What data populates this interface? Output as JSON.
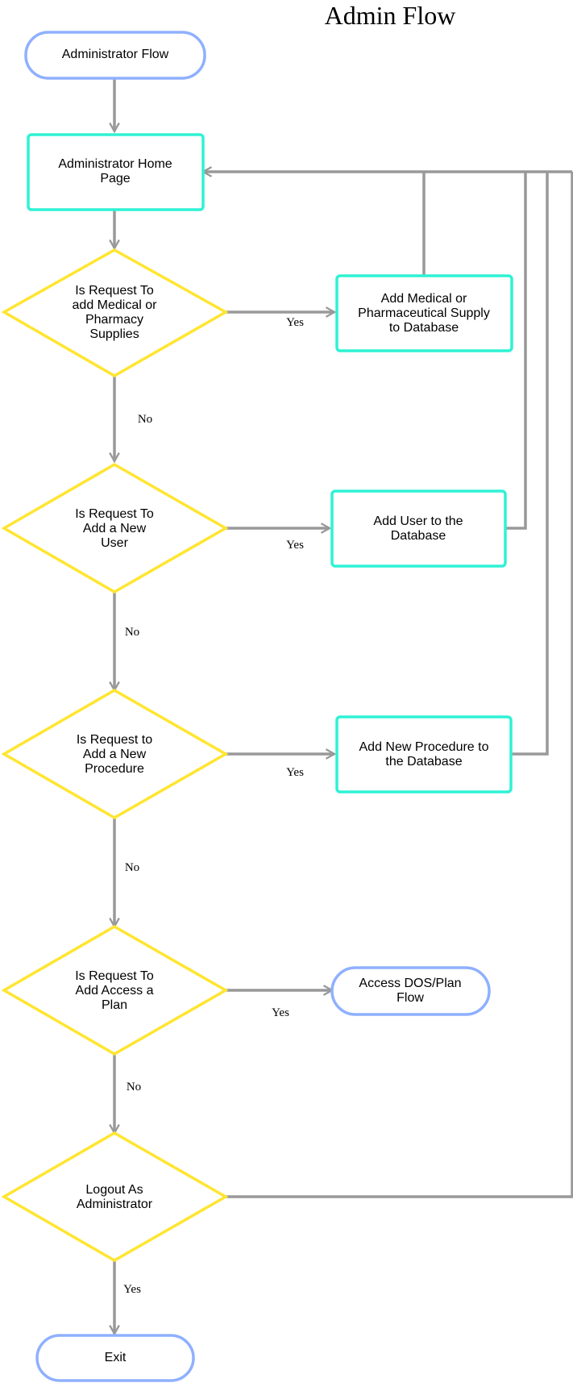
{
  "title": "Admin Flow",
  "colors": {
    "terminal_stroke": "#8fb0ff",
    "process_stroke": "#2ef2d4",
    "decision_stroke": "#ffe530",
    "connector": "#999999"
  },
  "nodes": {
    "start": {
      "shape": "terminal",
      "lines": [
        "Administrator Flow"
      ]
    },
    "home": {
      "shape": "process",
      "lines": [
        "Administrator Home",
        "Page"
      ]
    },
    "q_supplies": {
      "shape": "decision",
      "lines": [
        "Is Request To",
        "add Medical or",
        "Pharmacy",
        "Supplies"
      ]
    },
    "add_supplies": {
      "shape": "process",
      "lines": [
        "Add Medical or",
        "Pharmaceutical Supply",
        "to Database"
      ]
    },
    "q_user": {
      "shape": "decision",
      "lines": [
        "Is Request To",
        "Add a New",
        "User"
      ]
    },
    "add_user": {
      "shape": "process",
      "lines": [
        "Add User to the",
        "Database"
      ]
    },
    "q_procedure": {
      "shape": "decision",
      "lines": [
        "Is Request to",
        "Add a New",
        "Procedure"
      ]
    },
    "add_procedure": {
      "shape": "process",
      "lines": [
        "Add New Procedure to",
        "the Database"
      ]
    },
    "q_plan": {
      "shape": "decision",
      "lines": [
        "Is Request To",
        "Add Access a",
        "Plan"
      ]
    },
    "access_plan": {
      "shape": "terminal",
      "lines": [
        "Access DOS/Plan",
        "Flow"
      ]
    },
    "q_logout": {
      "shape": "decision",
      "lines": [
        "Logout As",
        "Administrator"
      ]
    },
    "exit": {
      "shape": "terminal",
      "lines": [
        "Exit"
      ]
    }
  },
  "edge_labels": {
    "yes_supplies": "Yes",
    "no_supplies": "No",
    "yes_user": "Yes",
    "no_user": "No",
    "yes_procedure": "Yes",
    "no_procedure": "No",
    "yes_plan": "Yes",
    "no_plan": "No",
    "yes_logout": "Yes"
  }
}
